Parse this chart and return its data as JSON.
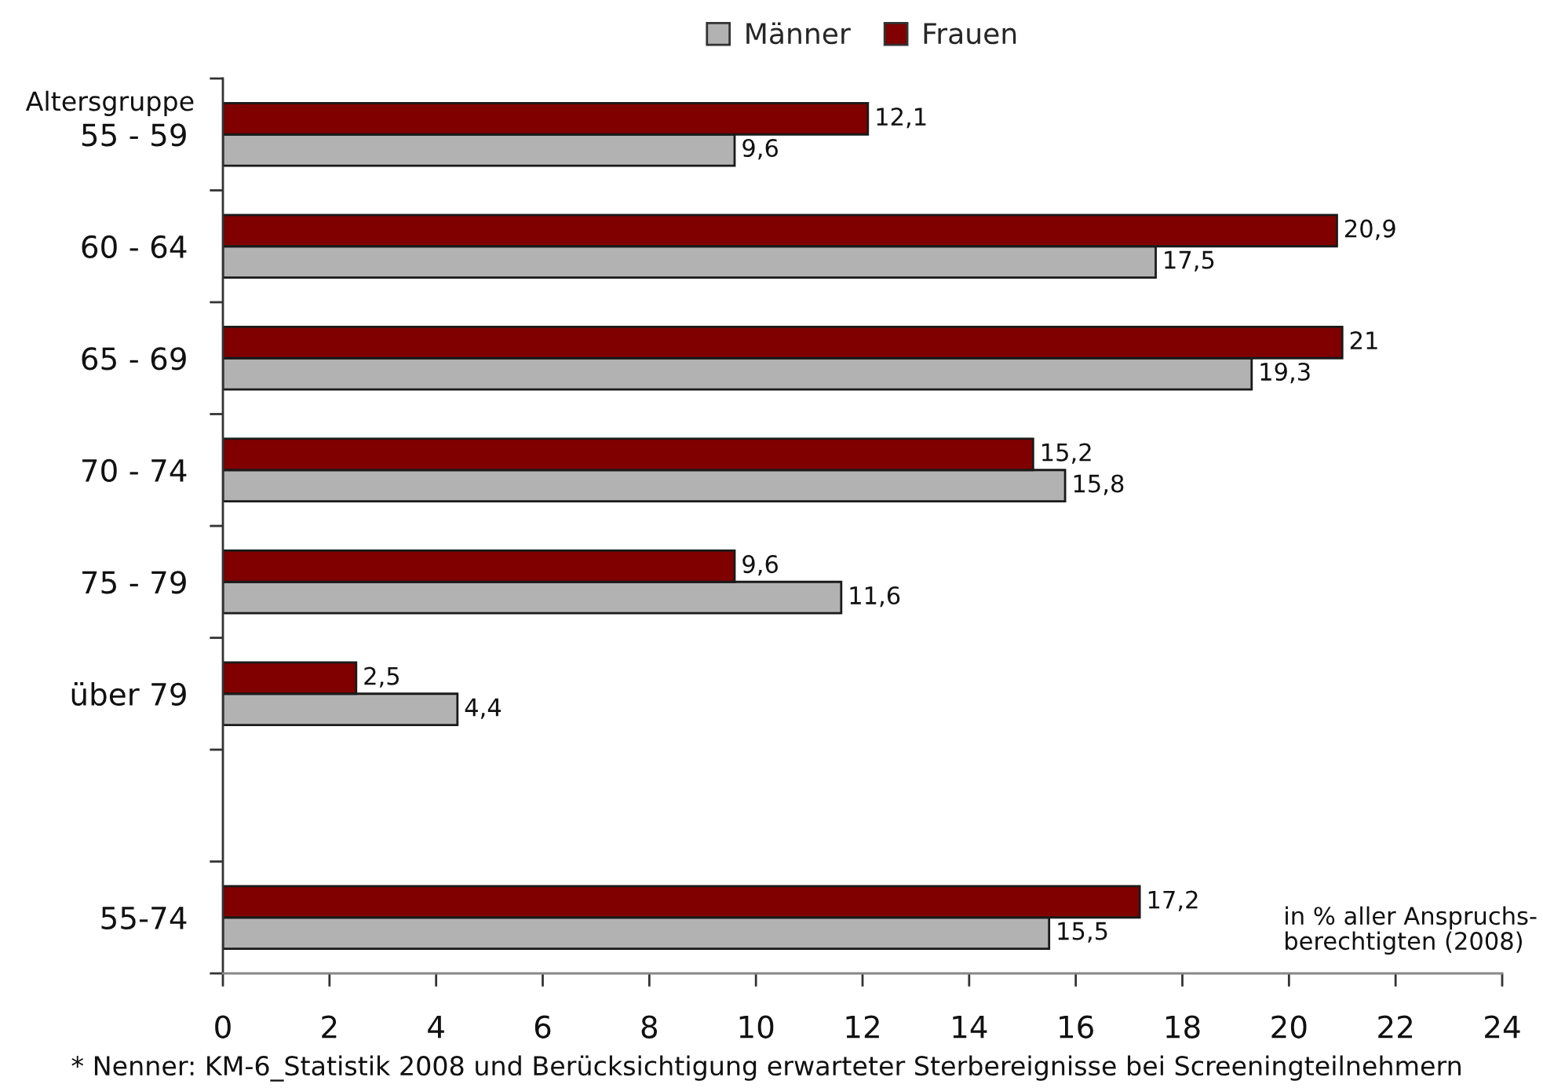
{
  "chart_data": {
    "type": "bar",
    "orientation": "horizontal",
    "ylabel": "Altersgruppe",
    "categories": [
      "55 - 59",
      "60 - 64",
      "65 - 69",
      "70 - 74",
      "75 - 79",
      "über 79",
      null,
      "55-74"
    ],
    "series": [
      {
        "name": "Männer",
        "color": "#b2b2b2",
        "values": [
          9.6,
          17.5,
          19.3,
          15.8,
          11.6,
          4.4,
          null,
          15.5
        ],
        "value_labels": [
          "9,6",
          "17,5",
          "19,3",
          "15,8",
          "11,6",
          "4,4",
          null,
          "15,5"
        ]
      },
      {
        "name": "Frauen",
        "color": "#800000",
        "values": [
          12.1,
          20.9,
          21,
          15.2,
          9.6,
          2.5,
          null,
          17.2
        ],
        "value_labels": [
          "12,1",
          "20,9",
          "21",
          "15,2",
          "9,6",
          "2,5",
          null,
          "17,2"
        ]
      }
    ],
    "xlim": [
      0,
      24
    ],
    "xticks": [
      0,
      2,
      4,
      6,
      8,
      10,
      12,
      14,
      16,
      18,
      20,
      22,
      24
    ],
    "legend": "top",
    "annotations": [
      "in % aller Anspruchs-\nberechtigten (2008)",
      "* Nenner: KM-6_Statistik 2008 und Berücksichtigung erwarteter Sterbereignisse bei Screeningteilnehmern"
    ]
  }
}
